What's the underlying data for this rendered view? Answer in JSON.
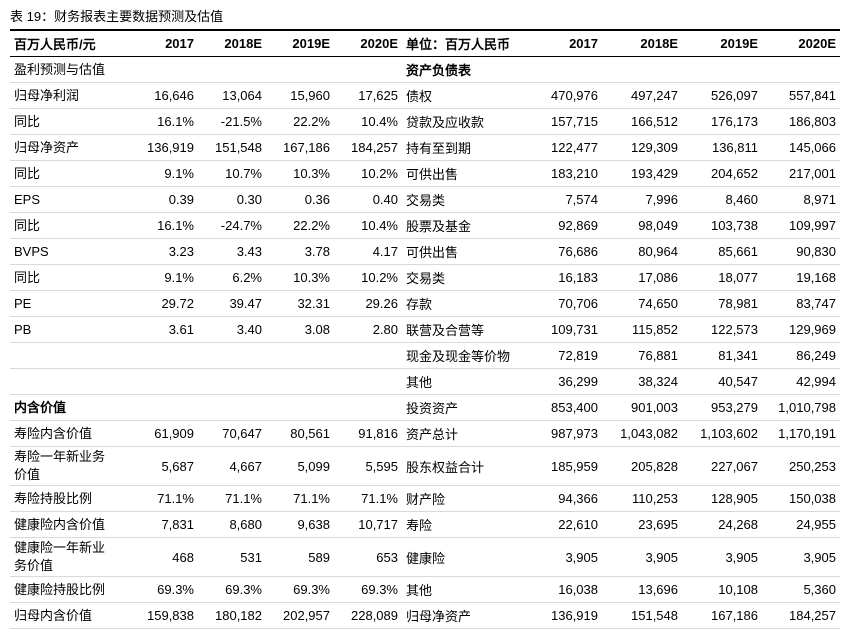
{
  "caption": "表 19：财务报表主要数据预测及估值",
  "table": {
    "header": [
      "百万人民币/元",
      "2017",
      "2018E",
      "2019E",
      "2020E",
      "单位：百万人民币",
      "2017",
      "2018E",
      "2019E",
      "2020E"
    ],
    "rows": [
      [
        "盈利预测与估值",
        null,
        null,
        null,
        null,
        "资产负债表",
        null,
        null,
        null,
        null
      ],
      [
        "归母净利润",
        "16,646",
        "13,064",
        "15,960",
        "17,625",
        "债权",
        "470,976",
        "497,247",
        "526,097",
        "557,841"
      ],
      [
        "同比",
        "16.1%",
        "-21.5%",
        "22.2%",
        "10.4%",
        "贷款及应收款",
        "157,715",
        "166,512",
        "176,173",
        "186,803"
      ],
      [
        "归母净资产",
        "136,919",
        "151,548",
        "167,186",
        "184,257",
        "持有至到期",
        "122,477",
        "129,309",
        "136,811",
        "145,066"
      ],
      [
        "同比",
        "9.1%",
        "10.7%",
        "10.3%",
        "10.2%",
        "可供出售",
        "183,210",
        "193,429",
        "204,652",
        "217,001"
      ],
      [
        "EPS",
        "0.39",
        "0.30",
        "0.36",
        "0.40",
        "交易类",
        "7,574",
        "7,996",
        "8,460",
        "8,971"
      ],
      [
        "同比",
        "16.1%",
        "-24.7%",
        "22.2%",
        "10.4%",
        "股票及基金",
        "92,869",
        "98,049",
        "103,738",
        "109,997"
      ],
      [
        "BVPS",
        "3.23",
        "3.43",
        "3.78",
        "4.17",
        "可供出售",
        "76,686",
        "80,964",
        "85,661",
        "90,830"
      ],
      [
        "同比",
        "9.1%",
        "6.2%",
        "10.3%",
        "10.2%",
        "交易类",
        "16,183",
        "17,086",
        "18,077",
        "19,168"
      ],
      [
        "PE",
        "29.72",
        "39.47",
        "32.31",
        "29.26",
        "存款",
        "70,706",
        "74,650",
        "78,981",
        "83,747"
      ],
      [
        "PB",
        "3.61",
        "3.40",
        "3.08",
        "2.80",
        "联营及合营等",
        "109,731",
        "115,852",
        "122,573",
        "129,969"
      ],
      [
        null,
        null,
        null,
        null,
        null,
        "现金及现金等价物",
        "72,819",
        "76,881",
        "81,341",
        "86,249"
      ],
      [
        null,
        null,
        null,
        null,
        null,
        "其他",
        "36,299",
        "38,324",
        "40,547",
        "42,994"
      ],
      [
        "内含价值",
        null,
        null,
        null,
        null,
        "投资资产",
        "853,400",
        "901,003",
        "953,279",
        "1,010,798"
      ],
      [
        "寿险内含价值",
        "61,909",
        "70,647",
        "80,561",
        "91,816",
        "资产总计",
        "987,973",
        "1,043,082",
        "1,103,602",
        "1,170,191"
      ],
      [
        "寿险一年新业务价值",
        "5,687",
        "4,667",
        "5,099",
        "5,595",
        "股东权益合计",
        "185,959",
        "205,828",
        "227,067",
        "250,253"
      ],
      [
        "寿险持股比例",
        "71.1%",
        "71.1%",
        "71.1%",
        "71.1%",
        "财产险",
        "94,366",
        "110,253",
        "128,905",
        "150,038"
      ],
      [
        "健康险内含价值",
        "7,831",
        "8,680",
        "9,638",
        "10,717",
        "寿险",
        "22,610",
        "23,695",
        "24,268",
        "24,955"
      ],
      [
        "健康险一年新业务价值",
        "468",
        "531",
        "589",
        "653",
        "健康险",
        "3,905",
        "3,905",
        "3,905",
        "3,905"
      ],
      [
        "健康险持股比例",
        "69.3%",
        "69.3%",
        "69.3%",
        "69.3%",
        "其他",
        "16,038",
        "13,696",
        "10,108",
        "5,360"
      ],
      [
        "归母内含价值",
        "159,838",
        "180,182",
        "202,957",
        "228,089",
        "归母净资产",
        "136,919",
        "151,548",
        "167,186",
        "184,257"
      ]
    ]
  }
}
